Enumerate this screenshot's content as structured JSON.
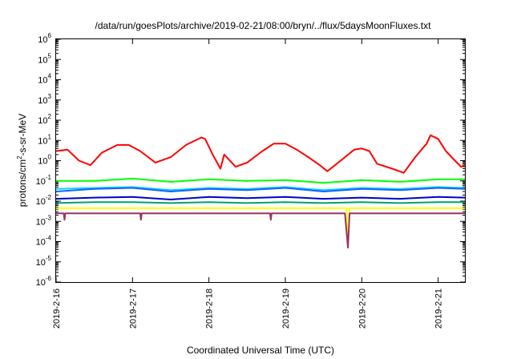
{
  "chart_data": {
    "type": "line",
    "title": "/data/run/goesPlots/archive/2019-02-21/08:00/bryn/../flux/5daysMoonFluxes.txt",
    "xlabel": "Coordinated Universal Time (UTC)",
    "ylabel": {
      "base": "protons/cm",
      "sup": "2",
      "rest": "-s-sr-MeV"
    },
    "yscale": "log",
    "ylim": [
      1e-06,
      1000000.0
    ],
    "xlim": [
      0,
      5.35
    ],
    "grid": false,
    "legend": "none",
    "x_ticks": [
      {
        "x": 0,
        "label": "2019-2-16"
      },
      {
        "x": 1,
        "label": "2019-2-17"
      },
      {
        "x": 2,
        "label": "2019-2-18"
      },
      {
        "x": 3,
        "label": "2019-2-19"
      },
      {
        "x": 4,
        "label": "2019-2-20"
      },
      {
        "x": 5,
        "label": "2019-2-21"
      }
    ],
    "y_ticks": [
      {
        "exp": -6,
        "label": "10",
        "sup": "-6"
      },
      {
        "exp": -5,
        "label": "10",
        "sup": "-5"
      },
      {
        "exp": -4,
        "label": "10",
        "sup": "-4"
      },
      {
        "exp": -3,
        "label": "10",
        "sup": "-3"
      },
      {
        "exp": -2,
        "label": "10",
        "sup": "-2"
      },
      {
        "exp": -1,
        "label": "10",
        "sup": "-1"
      },
      {
        "exp": 0,
        "label": "10",
        "sup": "0"
      },
      {
        "exp": 1,
        "label": "10",
        "sup": "1"
      },
      {
        "exp": 2,
        "label": "10",
        "sup": "2"
      },
      {
        "exp": 3,
        "label": "10",
        "sup": "3"
      },
      {
        "exp": 4,
        "label": "10",
        "sup": "4"
      },
      {
        "exp": 5,
        "label": "10",
        "sup": "5"
      },
      {
        "exp": 6,
        "label": "10",
        "sup": "6"
      }
    ],
    "series": [
      {
        "color": "#ff0000",
        "points": [
          [
            0,
            3
          ],
          [
            0.15,
            3.5
          ],
          [
            0.3,
            1
          ],
          [
            0.45,
            0.6
          ],
          [
            0.6,
            2.5
          ],
          [
            0.8,
            6
          ],
          [
            0.95,
            6
          ],
          [
            1.1,
            3
          ],
          [
            1.3,
            0.8
          ],
          [
            1.5,
            1.5
          ],
          [
            1.7,
            6
          ],
          [
            1.9,
            14
          ],
          [
            1.95,
            12
          ],
          [
            2.05,
            2
          ],
          [
            2.15,
            0.4
          ],
          [
            2.2,
            2
          ],
          [
            2.35,
            0.5
          ],
          [
            2.5,
            0.8
          ],
          [
            2.7,
            3
          ],
          [
            2.85,
            7
          ],
          [
            3.0,
            7
          ],
          [
            3.15,
            3.5
          ],
          [
            3.3,
            1.5
          ],
          [
            3.45,
            0.6
          ],
          [
            3.55,
            0.3
          ],
          [
            3.75,
            1.2
          ],
          [
            3.9,
            3.5
          ],
          [
            4.0,
            4
          ],
          [
            4.1,
            3
          ],
          [
            4.2,
            0.7
          ],
          [
            4.4,
            0.4
          ],
          [
            4.55,
            0.25
          ],
          [
            4.7,
            1.5
          ],
          [
            4.85,
            7
          ],
          [
            4.9,
            18
          ],
          [
            5.0,
            12
          ],
          [
            5.1,
            3
          ],
          [
            5.2,
            1.2
          ],
          [
            5.3,
            0.5
          ],
          [
            5.35,
            0.6
          ]
        ]
      },
      {
        "color": "#00ff00",
        "points": [
          [
            0,
            0.1
          ],
          [
            0.5,
            0.1
          ],
          [
            1.0,
            0.13
          ],
          [
            1.5,
            0.09
          ],
          [
            2.0,
            0.12
          ],
          [
            2.5,
            0.1
          ],
          [
            3.0,
            0.11
          ],
          [
            3.5,
            0.08
          ],
          [
            4.0,
            0.11
          ],
          [
            4.5,
            0.09
          ],
          [
            5.0,
            0.12
          ],
          [
            5.35,
            0.12
          ]
        ]
      },
      {
        "color": "#00d8ff",
        "points": [
          [
            0,
            0.04
          ],
          [
            0.5,
            0.045
          ],
          [
            1.0,
            0.05
          ],
          [
            1.5,
            0.035
          ],
          [
            2.0,
            0.045
          ],
          [
            2.5,
            0.04
          ],
          [
            3.0,
            0.05
          ],
          [
            3.5,
            0.035
          ],
          [
            4.0,
            0.045
          ],
          [
            4.5,
            0.04
          ],
          [
            5.0,
            0.05
          ],
          [
            5.35,
            0.045
          ]
        ]
      },
      {
        "color": "#1e5fff",
        "points": [
          [
            0,
            0.03
          ],
          [
            0.5,
            0.04
          ],
          [
            1.0,
            0.045
          ],
          [
            1.5,
            0.03
          ],
          [
            2.0,
            0.04
          ],
          [
            2.5,
            0.035
          ],
          [
            3.0,
            0.045
          ],
          [
            3.5,
            0.03
          ],
          [
            4.0,
            0.04
          ],
          [
            4.5,
            0.035
          ],
          [
            5.0,
            0.045
          ],
          [
            5.35,
            0.04
          ]
        ]
      },
      {
        "color": "#0000cc",
        "points": [
          [
            0,
            0.013
          ],
          [
            0.5,
            0.015
          ],
          [
            1.0,
            0.016
          ],
          [
            1.5,
            0.012
          ],
          [
            2.0,
            0.016
          ],
          [
            2.5,
            0.014
          ],
          [
            3.0,
            0.016
          ],
          [
            3.5,
            0.013
          ],
          [
            4.0,
            0.015
          ],
          [
            4.5,
            0.013
          ],
          [
            5.0,
            0.016
          ],
          [
            5.35,
            0.015
          ]
        ]
      },
      {
        "color": "#00a070",
        "points": [
          [
            0,
            0.008
          ],
          [
            0.5,
            0.009
          ],
          [
            1.0,
            0.009
          ],
          [
            1.5,
            0.008
          ],
          [
            2.0,
            0.009
          ],
          [
            2.5,
            0.008
          ],
          [
            3.0,
            0.009
          ],
          [
            3.5,
            0.008
          ],
          [
            4.0,
            0.009
          ],
          [
            4.5,
            0.008
          ],
          [
            5.0,
            0.009
          ],
          [
            5.35,
            0.009
          ]
        ]
      },
      {
        "color": "#ffff00",
        "points": [
          [
            0,
            0.0045
          ],
          [
            1.0,
            0.0045
          ],
          [
            2.0,
            0.0045
          ],
          [
            3.0,
            0.0045
          ],
          [
            3.8,
            0.0045
          ],
          [
            3.82,
            5e-05
          ],
          [
            3.84,
            0.0045
          ],
          [
            4.0,
            0.0045
          ],
          [
            5.0,
            0.0045
          ],
          [
            5.35,
            0.0045
          ]
        ]
      },
      {
        "color": "#993366",
        "points": [
          [
            0,
            0.0025
          ],
          [
            0.1,
            0.0025
          ],
          [
            0.11,
            0.0012
          ],
          [
            0.12,
            0.0025
          ],
          [
            1.0,
            0.0025
          ],
          [
            1.1,
            0.0025
          ],
          [
            1.11,
            0.0012
          ],
          [
            1.12,
            0.0025
          ],
          [
            2.0,
            0.0025
          ],
          [
            2.8,
            0.0025
          ],
          [
            2.81,
            0.0012
          ],
          [
            2.82,
            0.0025
          ],
          [
            3.78,
            0.0025
          ],
          [
            3.82,
            5e-05
          ],
          [
            3.84,
            0.0025
          ],
          [
            4.0,
            0.0025
          ],
          [
            5.0,
            0.0025
          ],
          [
            5.35,
            0.0025
          ]
        ]
      }
    ]
  }
}
